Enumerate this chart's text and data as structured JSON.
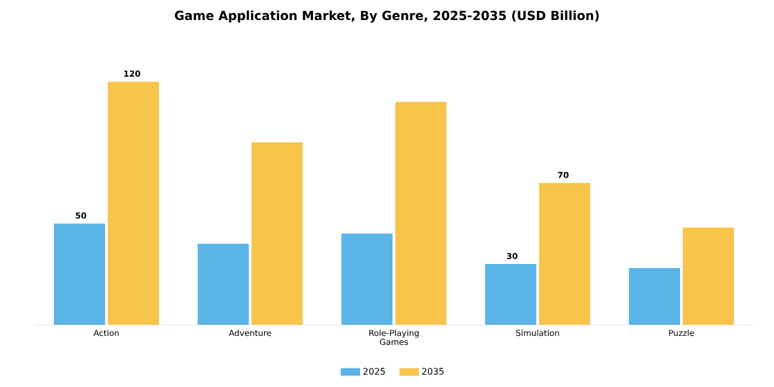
{
  "chart_data": {
    "type": "bar",
    "title": "Game Application Market, By Genre, 2025-2035 (USD Billion)",
    "categories": [
      "Action",
      "Adventure",
      "Role-Playing Games",
      "Simulation",
      "Puzzle"
    ],
    "series": [
      {
        "name": "2025",
        "color": "#5ab4e5",
        "values": [
          50,
          40,
          45,
          30,
          28
        ],
        "value_labels": [
          "50",
          null,
          null,
          "30",
          null
        ]
      },
      {
        "name": "2035",
        "color": "#f8c44a",
        "values": [
          120,
          90,
          110,
          70,
          48
        ],
        "value_labels": [
          "120",
          null,
          null,
          "70",
          null
        ]
      }
    ],
    "legend": "bottom"
  }
}
